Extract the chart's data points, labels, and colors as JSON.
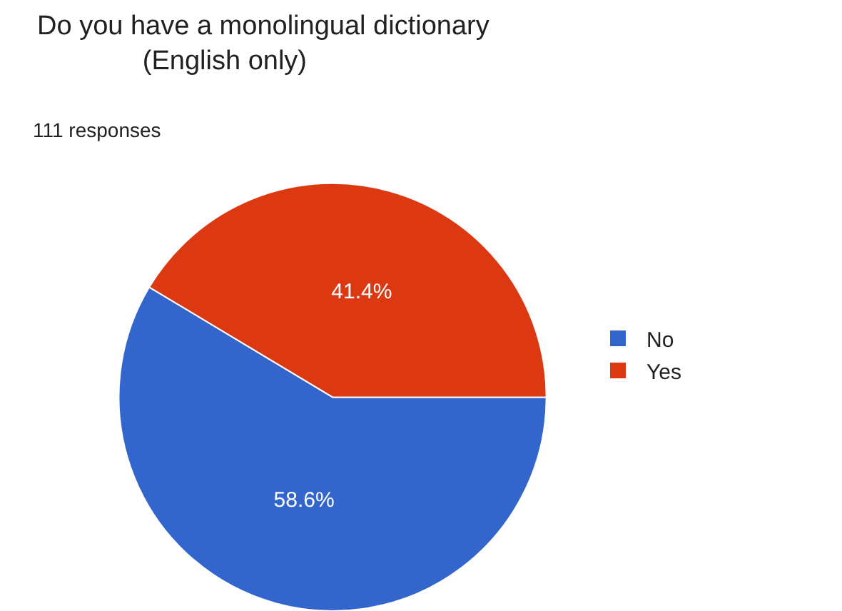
{
  "chart_data": {
    "type": "pie",
    "title": "Do you have a monolingual dictionary\n              (English only)",
    "subtitle": "111 responses",
    "categories": [
      "No",
      "Yes"
    ],
    "values": [
      58.6,
      41.4
    ],
    "colors": [
      "#3366cc",
      "#dc3912"
    ],
    "value_labels": [
      "58.6%",
      "41.4%"
    ],
    "legend": "right"
  }
}
